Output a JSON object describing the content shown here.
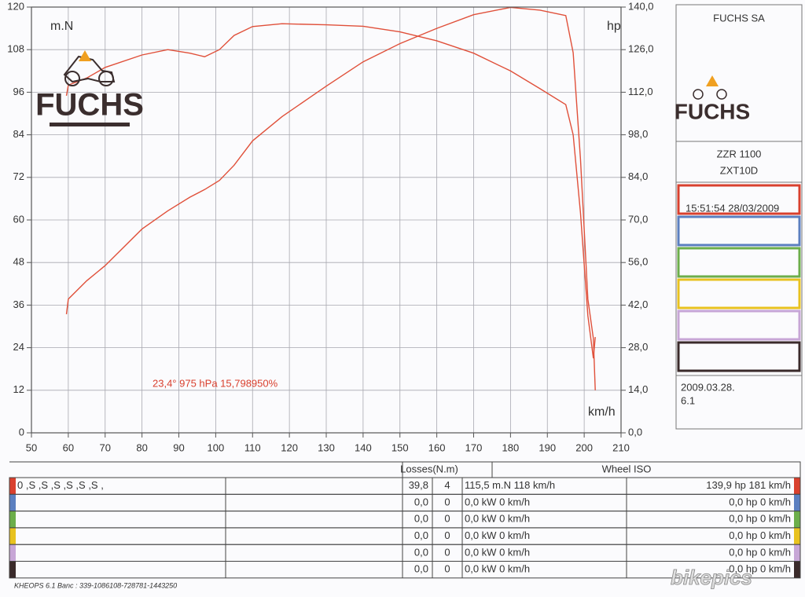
{
  "chart_data": {
    "type": "line",
    "y_label": "m.N",
    "y2_label": "hp",
    "x_label": "km/h",
    "annotation": "23,4°  975 hPa  15,798950%",
    "x": [
      59.5,
      60,
      65,
      70,
      80,
      87,
      93,
      97,
      101,
      105,
      110,
      118,
      130,
      140,
      150,
      160,
      170,
      180,
      188,
      195,
      197,
      199,
      201,
      202.5,
      203
    ],
    "series": [
      {
        "color": "#e0503a",
        "values": [
          95,
          98,
          100,
          103,
          106.5,
          108,
          107,
          106,
          108,
          112,
          114.5,
          115.3,
          115,
          114.6,
          113,
          110.5,
          107,
          102,
          97,
          92.5,
          84,
          62,
          33,
          21,
          27
        ]
      },
      {
        "color": "#e0503a",
        "axis": "y2",
        "values": [
          39,
          44,
          50,
          55,
          67,
          73,
          77.5,
          80,
          83,
          88,
          96,
          104,
          114,
          122,
          128,
          133,
          137.5,
          139.9,
          139,
          137.2,
          125,
          90,
          44,
          31,
          14
        ]
      }
    ],
    "xlim": [
      50,
      210
    ],
    "xticks": [
      50,
      60,
      70,
      80,
      90,
      100,
      110,
      120,
      130,
      140,
      150,
      160,
      170,
      180,
      190,
      200,
      210
    ],
    "ylim": [
      0,
      120
    ],
    "yticks": [
      0,
      12,
      24,
      36,
      48,
      60,
      72,
      84,
      96,
      108,
      120
    ],
    "y2lim": [
      0,
      140
    ],
    "y2ticks": [
      {
        "value": 0,
        "label": "0,0"
      },
      {
        "value": 14,
        "label": "14,0"
      },
      {
        "value": 28,
        "label": "28,0"
      },
      {
        "value": 42,
        "label": "42,0"
      },
      {
        "value": 56,
        "label": "56,0"
      },
      {
        "value": 70,
        "label": "70,0"
      },
      {
        "value": 84,
        "label": "84,0"
      },
      {
        "value": 98,
        "label": "98,0"
      },
      {
        "value": 112,
        "label": "112,0"
      },
      {
        "value": 126,
        "label": "126,0"
      },
      {
        "value": 140,
        "label": "140,0"
      }
    ],
    "grid": true
  },
  "logo": "FUCHS",
  "panel": {
    "company": "FUCHS SA",
    "logo": "FUCHS",
    "model": "ZZR 1100",
    "code": "ZXT10D",
    "runs": [
      {
        "label": "15:51:54  28/03/2009",
        "color": "#d9402e"
      },
      {
        "color": "#5b7fc0"
      },
      {
        "color": "#6cae4a"
      },
      {
        "color": "#e8c21f"
      },
      {
        "color": "#c7a6d6"
      },
      {
        "color": "#3a2a2a"
      }
    ],
    "date": "2009.03.28.",
    "version": "6.1"
  },
  "table": {
    "header": [
      "Losses(N.m)",
      "Wheel ISO"
    ],
    "rows": [
      {
        "label": "0 ,S ,S ,S ,S ,S ,S ,",
        "cells": [
          "39,8",
          "4",
          "115,5 m.N 118 km/h",
          "139,9 hp 181 km/h"
        ]
      },
      {
        "cells": [
          "0,0",
          "0",
          "0,0 kW 0 km/h",
          "0,0 hp 0 km/h"
        ]
      },
      {
        "cells": [
          "0,0",
          "0",
          "0,0 kW 0 km/h",
          "0,0 hp 0 km/h"
        ]
      },
      {
        "cells": [
          "0,0",
          "0",
          "0,0 kW 0 km/h",
          "0,0 hp 0 km/h"
        ]
      },
      {
        "cells": [
          "0,0",
          "0",
          "0,0 kW 0 km/h",
          "0,0 hp 0 km/h"
        ]
      },
      {
        "cells": [
          "0,0",
          "0",
          "0,0 kW 0 km/h",
          "0,0 hp 0 km/h"
        ]
      }
    ]
  },
  "footer": "KHEOPS 6.1  Banc : 339-1086108-728781-1443250",
  "watermark": "bikepics"
}
